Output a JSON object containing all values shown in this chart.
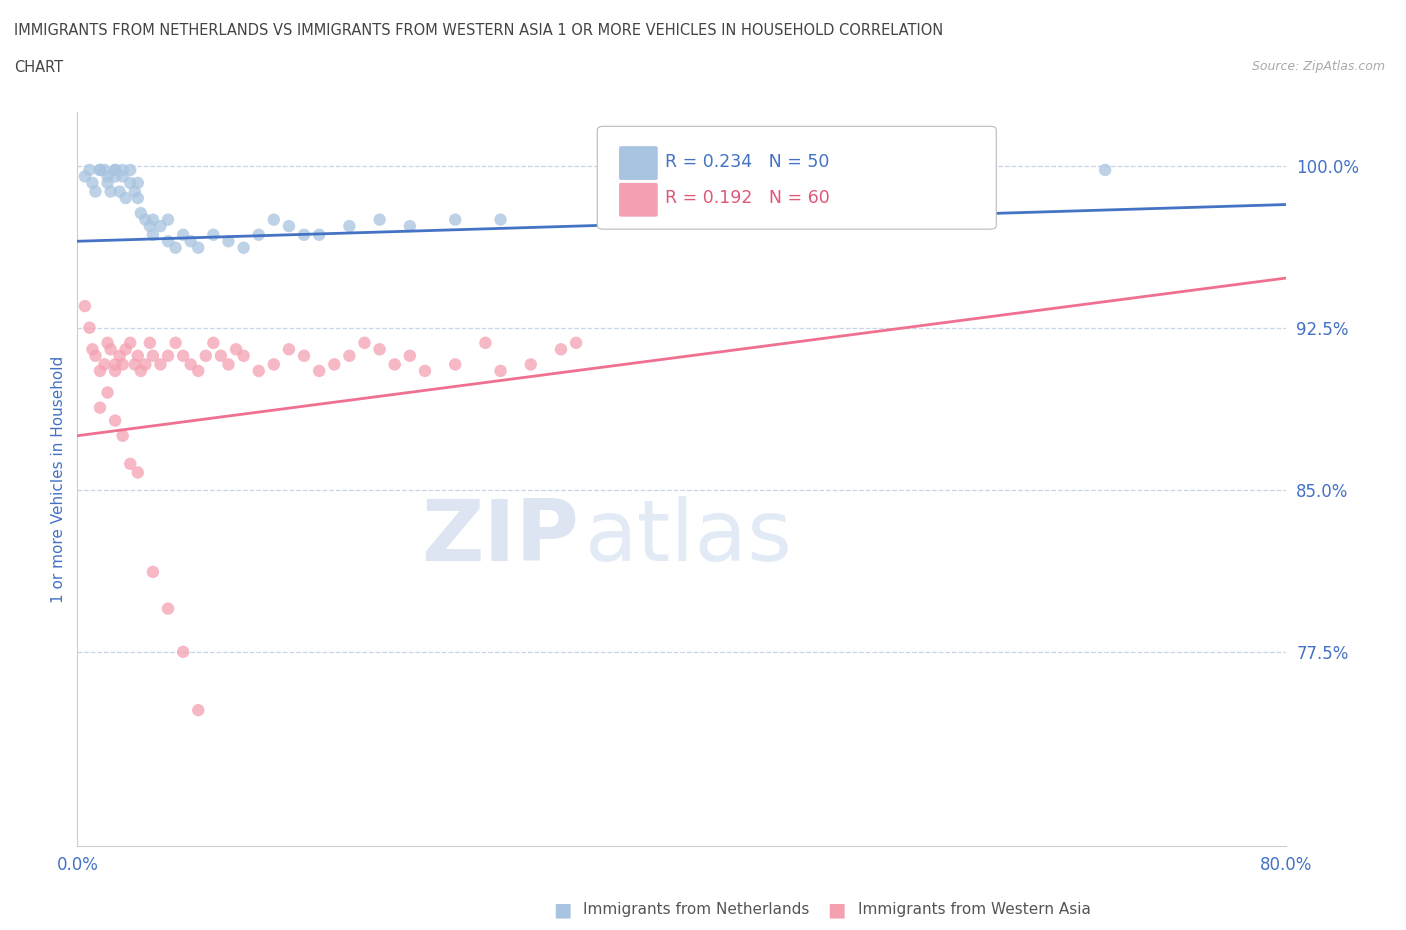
{
  "title_line1": "IMMIGRANTS FROM NETHERLANDS VS IMMIGRANTS FROM WESTERN ASIA 1 OR MORE VEHICLES IN HOUSEHOLD CORRELATION",
  "title_line2": "CHART",
  "source_text": "Source: ZipAtlas.com",
  "ylabel": "1 or more Vehicles in Household",
  "xmin": 0.0,
  "xmax": 0.8,
  "ymin": 0.685,
  "ymax": 1.025,
  "yticks": [
    0.775,
    0.85,
    0.925,
    1.0
  ],
  "ytick_labels": [
    "77.5%",
    "85.0%",
    "92.5%",
    "100.0%"
  ],
  "xticks": [
    0.0,
    0.1,
    0.2,
    0.3,
    0.4,
    0.5,
    0.6,
    0.7,
    0.8
  ],
  "xtick_labels": [
    "0.0%",
    "",
    "",
    "",
    "",
    "",
    "",
    "",
    "80.0%"
  ],
  "legend_r1": "R = 0.234   N = 50",
  "legend_r2": "R = 0.192   N = 60",
  "legend_label1": "Immigrants from Netherlands",
  "legend_label2": "Immigrants from Western Asia",
  "color_blue": "#a8c4e0",
  "color_pink": "#f4a0b0",
  "color_blue_line": "#4472c4",
  "color_pink_line": "#f07090",
  "color_blue_text": "#4472c4",
  "color_pink_text": "#e05878",
  "dot_size": 80,
  "alpha": 0.75,
  "watermark_zip": "ZIP",
  "watermark_atlas": "atlas",
  "background_color": "#ffffff",
  "grid_color": "#c8d4e8",
  "title_color": "#444444",
  "axis_label_color": "#4472c4",
  "blue_trend_x0": 0.0,
  "blue_trend_y0": 0.965,
  "blue_trend_x1": 0.8,
  "blue_trend_y1": 0.982,
  "pink_trend_x0": 0.0,
  "pink_trend_y0": 0.875,
  "pink_trend_x1": 0.8,
  "pink_trend_y1": 0.948,
  "blue_scatter_x": [
    0.005,
    0.008,
    0.01,
    0.012,
    0.015,
    0.015,
    0.018,
    0.02,
    0.02,
    0.022,
    0.025,
    0.025,
    0.025,
    0.028,
    0.03,
    0.03,
    0.032,
    0.035,
    0.035,
    0.038,
    0.04,
    0.04,
    0.042,
    0.045,
    0.048,
    0.05,
    0.05,
    0.055,
    0.06,
    0.06,
    0.065,
    0.07,
    0.075,
    0.08,
    0.09,
    0.1,
    0.11,
    0.12,
    0.13,
    0.14,
    0.15,
    0.16,
    0.18,
    0.2,
    0.22,
    0.25,
    0.28,
    0.35,
    0.42,
    0.68
  ],
  "blue_scatter_y": [
    0.995,
    0.998,
    0.992,
    0.988,
    0.998,
    0.998,
    0.998,
    0.995,
    0.992,
    0.988,
    0.998,
    0.998,
    0.995,
    0.988,
    0.995,
    0.998,
    0.985,
    0.998,
    0.992,
    0.988,
    0.992,
    0.985,
    0.978,
    0.975,
    0.972,
    0.975,
    0.968,
    0.972,
    0.975,
    0.965,
    0.962,
    0.968,
    0.965,
    0.962,
    0.968,
    0.965,
    0.962,
    0.968,
    0.975,
    0.972,
    0.968,
    0.968,
    0.972,
    0.975,
    0.972,
    0.975,
    0.975,
    0.975,
    0.978,
    0.998
  ],
  "pink_scatter_x": [
    0.005,
    0.008,
    0.01,
    0.012,
    0.015,
    0.018,
    0.02,
    0.022,
    0.025,
    0.025,
    0.028,
    0.03,
    0.032,
    0.035,
    0.038,
    0.04,
    0.042,
    0.045,
    0.048,
    0.05,
    0.055,
    0.06,
    0.065,
    0.07,
    0.075,
    0.08,
    0.085,
    0.09,
    0.095,
    0.1,
    0.105,
    0.11,
    0.12,
    0.13,
    0.14,
    0.15,
    0.16,
    0.17,
    0.18,
    0.19,
    0.2,
    0.21,
    0.22,
    0.23,
    0.25,
    0.27,
    0.28,
    0.3,
    0.32,
    0.33,
    0.015,
    0.02,
    0.025,
    0.03,
    0.035,
    0.04,
    0.05,
    0.06,
    0.07,
    0.08
  ],
  "pink_scatter_y": [
    0.935,
    0.925,
    0.915,
    0.912,
    0.905,
    0.908,
    0.918,
    0.915,
    0.905,
    0.908,
    0.912,
    0.908,
    0.915,
    0.918,
    0.908,
    0.912,
    0.905,
    0.908,
    0.918,
    0.912,
    0.908,
    0.912,
    0.918,
    0.912,
    0.908,
    0.905,
    0.912,
    0.918,
    0.912,
    0.908,
    0.915,
    0.912,
    0.905,
    0.908,
    0.915,
    0.912,
    0.905,
    0.908,
    0.912,
    0.918,
    0.915,
    0.908,
    0.912,
    0.905,
    0.908,
    0.918,
    0.905,
    0.908,
    0.915,
    0.918,
    0.888,
    0.895,
    0.882,
    0.875,
    0.862,
    0.858,
    0.812,
    0.795,
    0.775,
    0.748
  ]
}
